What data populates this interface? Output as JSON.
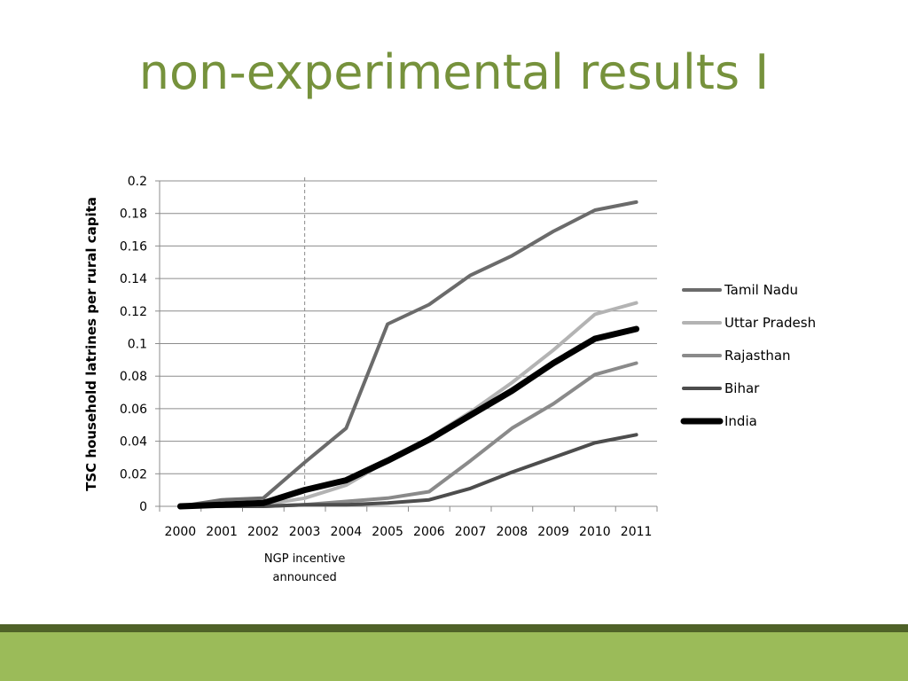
{
  "slide": {
    "title": "non-experimental results I",
    "colors": {
      "title": "#76923c",
      "band_dark": "#4f6228",
      "band_light": "#9bbb59"
    }
  },
  "chart_data": {
    "type": "line",
    "title": "",
    "xlabel": "",
    "ylabel": "TSC household latrines per rural capita",
    "x": [
      "2000",
      "2001",
      "2002",
      "2003",
      "2004",
      "2005",
      "2006",
      "2007",
      "2008",
      "2009",
      "2010",
      "2011"
    ],
    "ylim": [
      0,
      0.2
    ],
    "yticks": [
      "0",
      "0.02",
      "0.04",
      "0.06",
      "0.08",
      "0.1",
      "0.12",
      "0.14",
      "0.16",
      "0.18",
      "0.2"
    ],
    "grid": true,
    "legend_position": "right",
    "series": [
      {
        "name": "Tamil Nadu",
        "color": "#6b6b6b",
        "values": [
          0,
          0.004,
          0.005,
          0.027,
          0.048,
          0.112,
          0.124,
          0.142,
          0.154,
          0.169,
          0.182,
          0.187
        ]
      },
      {
        "name": "Uttar Pradesh",
        "color": "#b3b3b3",
        "values": [
          0,
          0,
          0.001,
          0.005,
          0.013,
          0.028,
          0.042,
          0.058,
          0.076,
          0.096,
          0.118,
          0.125
        ]
      },
      {
        "name": "Rajasthan",
        "color": "#8a8a8a",
        "values": [
          0,
          0,
          0,
          0.001,
          0.003,
          0.005,
          0.009,
          0.028,
          0.048,
          0.063,
          0.081,
          0.088
        ]
      },
      {
        "name": "Bihar",
        "color": "#4d4d4d",
        "values": [
          0,
          0,
          0,
          0.001,
          0.001,
          0.002,
          0.004,
          0.011,
          0.021,
          0.03,
          0.039,
          0.044
        ]
      },
      {
        "name": "India",
        "color": "#000000",
        "values": [
          0,
          0.001,
          0.002,
          0.01,
          0.016,
          0.028,
          0.041,
          0.056,
          0.071,
          0.088,
          0.103,
          0.109
        ]
      }
    ],
    "annotation": {
      "x": "2003",
      "label_line1": "NGP incentive",
      "label_line2": "announced"
    }
  }
}
